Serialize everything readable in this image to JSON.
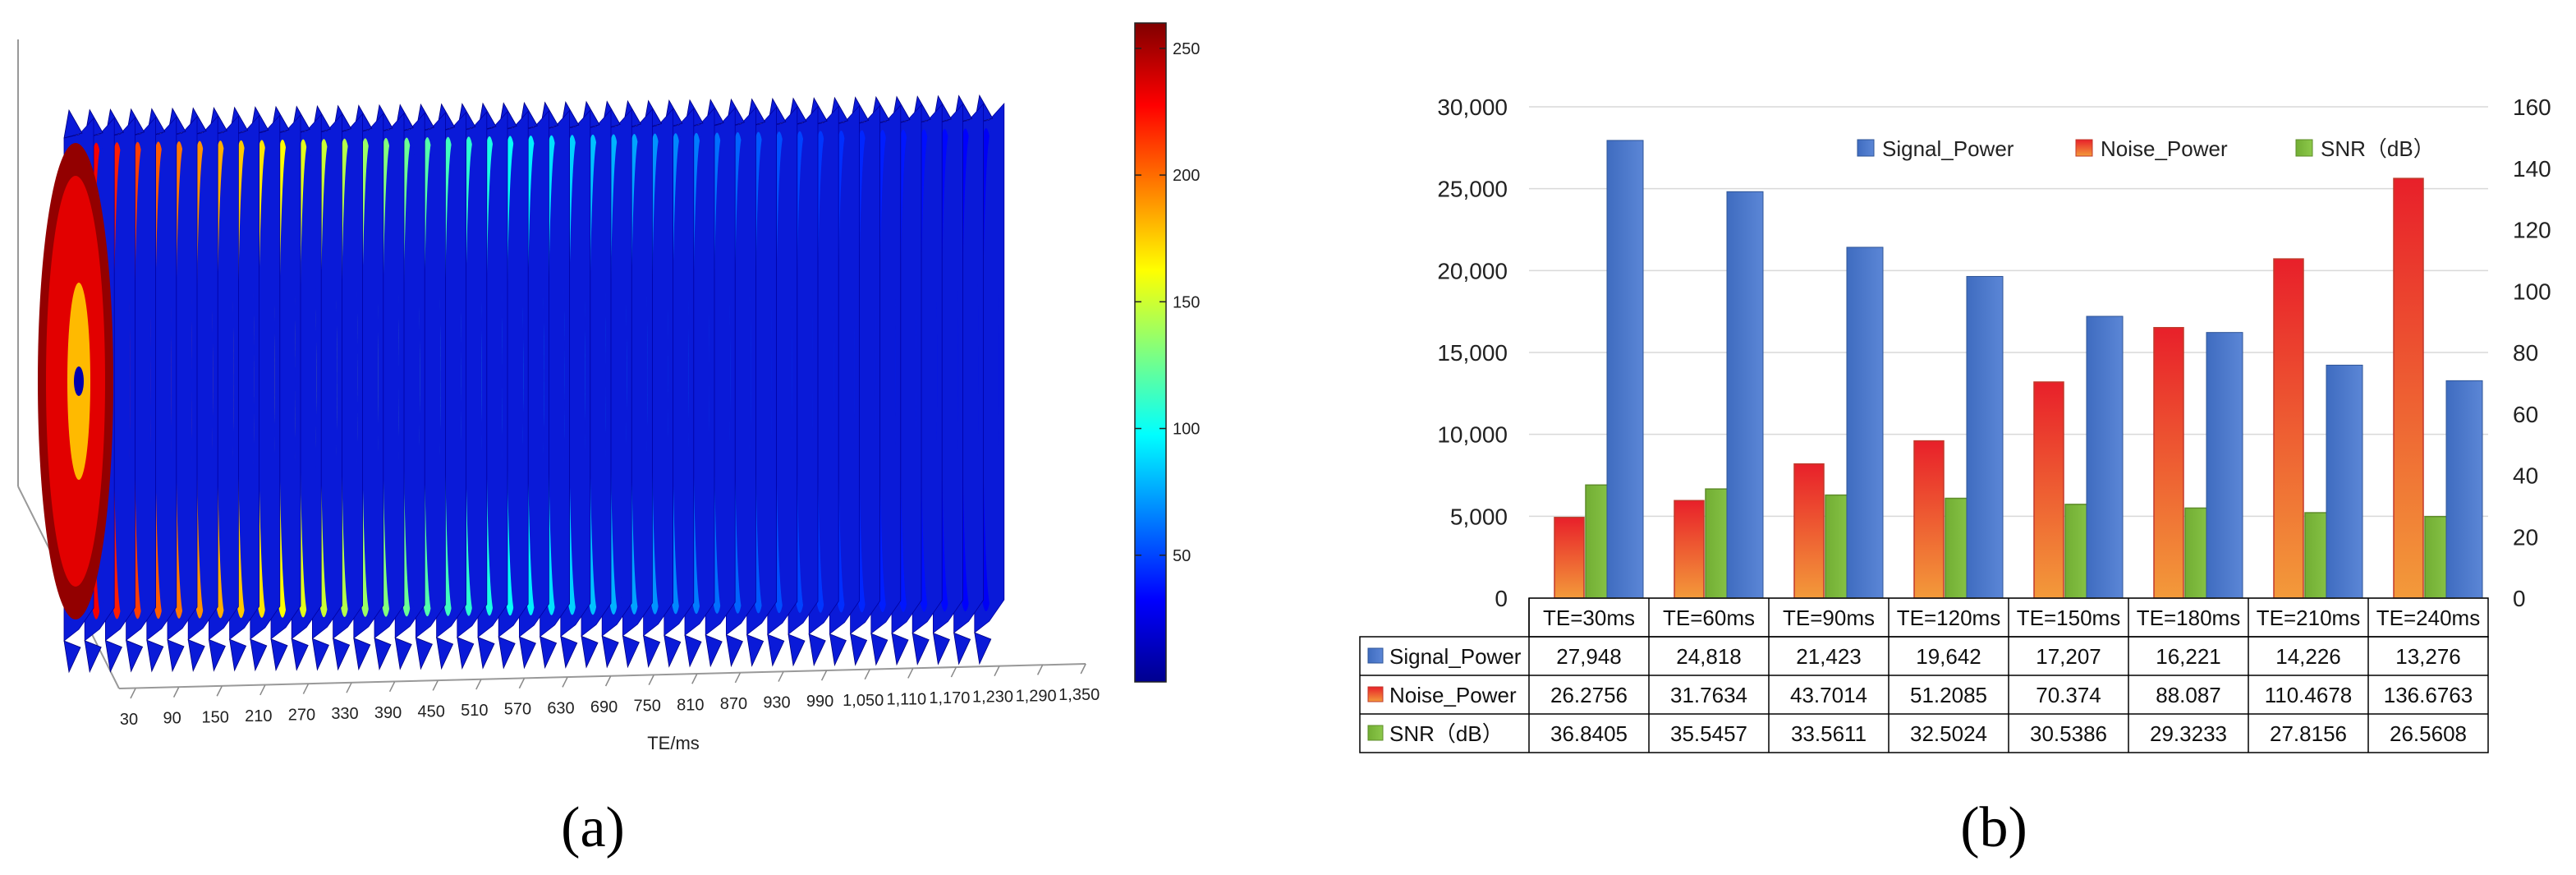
{
  "panels": {
    "a_label": "(a)",
    "b_label": "(b)"
  },
  "chart_data": [
    {
      "type": "heatmap",
      "id": "a",
      "description_free": true,
      "xlabel": "TE/ms",
      "x_ticks": [
        "30",
        "90",
        "150",
        "210",
        "270",
        "330",
        "390",
        "450",
        "510",
        "570",
        "630",
        "690",
        "750",
        "810",
        "870",
        "930",
        "990",
        "1,050",
        "1,110",
        "1,170",
        "1,230",
        "1,290",
        "1,350"
      ],
      "slice_count": 45,
      "colorbar": {
        "min": 0,
        "max": 260,
        "ticks": [
          {
            "value": 50,
            "label": "50"
          },
          {
            "value": 100,
            "label": "100"
          },
          {
            "value": 150,
            "label": "150"
          },
          {
            "value": 200,
            "label": "200"
          },
          {
            "value": 250,
            "label": "250"
          }
        ]
      },
      "slice_peak_values": [
        255,
        230,
        220,
        212,
        204,
        197,
        190,
        183,
        176,
        169,
        162,
        155,
        149,
        143,
        137,
        131,
        125,
        119,
        114,
        109,
        104,
        99,
        94,
        90,
        86,
        82,
        78,
        74,
        70,
        67,
        64,
        61,
        58,
        55,
        52,
        49,
        46,
        44,
        42,
        40,
        38,
        36,
        34,
        32,
        30
      ]
    },
    {
      "type": "bar",
      "id": "b",
      "categories": [
        "TE=30ms",
        "TE=60ms",
        "TE=90ms",
        "TE=120ms",
        "TE=150ms",
        "TE=180ms",
        "TE=210ms",
        "TE=240ms"
      ],
      "y_left": {
        "min": 0,
        "max": 30000,
        "ticks": [
          "0",
          "5,000",
          "10,000",
          "15,000",
          "20,000",
          "25,000",
          "30,000"
        ]
      },
      "y_right": {
        "min": 0,
        "max": 160,
        "ticks": [
          "0",
          "20",
          "40",
          "60",
          "80",
          "100",
          "120",
          "140",
          "160"
        ]
      },
      "series": [
        {
          "name": "Signal_Power",
          "axis": "left",
          "color": "#4472C4",
          "values": [
            27948,
            24818,
            21423,
            19642,
            17207,
            16221,
            14226,
            13276
          ],
          "labels": [
            "27,948",
            "24,818",
            "21,423",
            "19,642",
            "17,207",
            "16,221",
            "14,226",
            "13,276"
          ]
        },
        {
          "name": "Noise_Power",
          "axis": "right",
          "color": "#E8562A",
          "values": [
            26.2756,
            31.7634,
            43.7014,
            51.2085,
            70.374,
            88.087,
            110.4678,
            136.6763
          ],
          "labels": [
            "26.2756",
            "31.7634",
            "43.7014",
            "51.2085",
            "70.374",
            "88.087",
            "110.4678",
            "136.6763"
          ]
        },
        {
          "name": "SNR（dB）",
          "axis": "right",
          "color": "#7DB83C",
          "values": [
            36.8405,
            35.5457,
            33.5611,
            32.5024,
            30.5386,
            29.3233,
            27.8156,
            26.5608
          ],
          "labels": [
            "36.8405",
            "35.5457",
            "33.5611",
            "32.5024",
            "30.5386",
            "29.3233",
            "27.8156",
            "26.5608"
          ]
        }
      ],
      "legend": "top"
    }
  ]
}
